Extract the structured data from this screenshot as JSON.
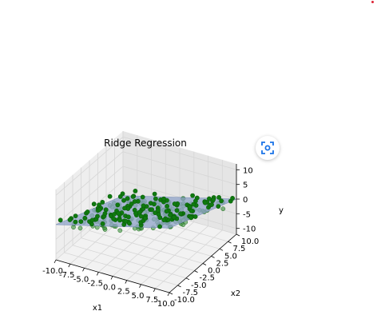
{
  "chart_data": {
    "type": "scatter",
    "title": "Ridge Regression",
    "xlabel": "x1",
    "ylabel": "x2",
    "zlabel": "y",
    "xlim": [
      -10,
      10
    ],
    "ylim": [
      -10,
      10
    ],
    "zlim": [
      -12,
      12
    ],
    "xticks": [
      "-10.0",
      "-7.5",
      "-5.0",
      "-2.5",
      "0.0",
      "2.5",
      "5.0",
      "7.5",
      "10.0"
    ],
    "yticks": [
      "-10.0",
      "-7.5",
      "-5.0",
      "-2.5",
      "0.0",
      "2.5",
      "5.0",
      "7.5",
      "10.0"
    ],
    "zticks": [
      "-10",
      "-5",
      "0",
      "5",
      "10"
    ],
    "x_tick_values": [
      -10,
      -7.5,
      -5,
      -2.5,
      0,
      2.5,
      5,
      7.5,
      10
    ],
    "y_tick_values": [
      -10,
      -7.5,
      -5,
      -2.5,
      0,
      2.5,
      5,
      7.5,
      10
    ],
    "z_tick_values": [
      -10,
      -5,
      0,
      5,
      10
    ],
    "plane": {
      "coef_x1": 0.5,
      "coef_x2": -0.5,
      "intercept": 0,
      "color": "#8fa3c8"
    },
    "points": {
      "color": "#008000",
      "count": 300,
      "noise_sd": 1.2
    },
    "grid": true
  },
  "ui": {
    "lens_button_icon": "scan-icon"
  }
}
